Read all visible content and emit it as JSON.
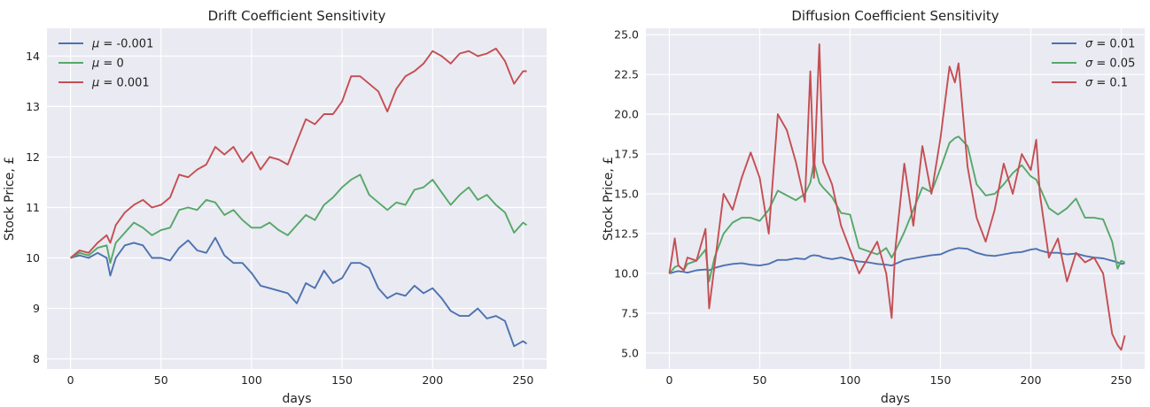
{
  "style": {
    "plot_bg": "#eaeaf2",
    "grid_color": "#ffffff",
    "series_colors": [
      "#4c72b0",
      "#55a868",
      "#c44e52"
    ]
  },
  "chart_data": [
    {
      "type": "line",
      "title": "Drift Coefficient Sensitivity",
      "xlabel": "days",
      "ylabel": "Stock Price, £",
      "xlim": [
        -13,
        263
      ],
      "ylim": [
        7.8,
        14.55
      ],
      "xticks": [
        0,
        50,
        100,
        150,
        200,
        250
      ],
      "xtick_labels": [
        "0",
        "50",
        "100",
        "150",
        "200",
        "250"
      ],
      "yticks": [
        8,
        9,
        10,
        11,
        12,
        13,
        14
      ],
      "ytick_labels": [
        "8",
        "9",
        "10",
        "11",
        "12",
        "13",
        "14"
      ],
      "grid": true,
      "legend_position": "upper left",
      "x": [
        0,
        5,
        10,
        15,
        20,
        22,
        25,
        30,
        35,
        40,
        45,
        50,
        55,
        60,
        65,
        70,
        75,
        80,
        85,
        90,
        95,
        100,
        105,
        110,
        115,
        120,
        125,
        130,
        135,
        140,
        145,
        150,
        155,
        160,
        165,
        170,
        175,
        180,
        185,
        190,
        195,
        200,
        205,
        210,
        215,
        220,
        225,
        230,
        235,
        240,
        245,
        250,
        252
      ],
      "series": [
        {
          "name": "μ = -0.001",
          "legend": {
            "symbol": "μ",
            "rest": " = -0.001"
          },
          "color": "#4c72b0",
          "values": [
            10.0,
            10.05,
            10.0,
            10.1,
            10.0,
            9.65,
            10.0,
            10.25,
            10.3,
            10.25,
            10.0,
            10.0,
            9.95,
            10.2,
            10.35,
            10.15,
            10.1,
            10.4,
            10.05,
            9.9,
            9.9,
            9.7,
            9.45,
            9.4,
            9.35,
            9.3,
            9.1,
            9.5,
            9.4,
            9.75,
            9.5,
            9.6,
            9.9,
            9.9,
            9.8,
            9.4,
            9.2,
            9.3,
            9.25,
            9.45,
            9.3,
            9.4,
            9.2,
            8.95,
            8.85,
            8.85,
            9.0,
            8.8,
            8.85,
            8.75,
            8.25,
            8.35,
            8.3
          ]
        },
        {
          "name": "μ = 0",
          "legend": {
            "symbol": "μ",
            "rest": " = 0"
          },
          "color": "#55a868",
          "values": [
            10.0,
            10.1,
            10.05,
            10.2,
            10.25,
            9.9,
            10.3,
            10.5,
            10.7,
            10.6,
            10.45,
            10.55,
            10.6,
            10.95,
            11.0,
            10.95,
            11.15,
            11.1,
            10.85,
            10.95,
            10.75,
            10.6,
            10.6,
            10.7,
            10.55,
            10.45,
            10.65,
            10.85,
            10.75,
            11.05,
            11.2,
            11.4,
            11.55,
            11.65,
            11.25,
            11.1,
            10.95,
            11.1,
            11.05,
            11.35,
            11.4,
            11.55,
            11.3,
            11.05,
            11.25,
            11.4,
            11.15,
            11.25,
            11.05,
            10.9,
            10.5,
            10.7,
            10.65
          ]
        },
        {
          "name": "μ = 0.001",
          "legend": {
            "symbol": "μ",
            "rest": " = 0.001"
          },
          "color": "#c44e52",
          "values": [
            10.0,
            10.15,
            10.1,
            10.3,
            10.45,
            10.3,
            10.65,
            10.9,
            11.05,
            11.15,
            11.0,
            11.05,
            11.2,
            11.65,
            11.6,
            11.75,
            11.85,
            12.2,
            12.05,
            12.2,
            11.9,
            12.1,
            11.75,
            12.0,
            11.95,
            11.85,
            12.3,
            12.75,
            12.65,
            12.85,
            12.85,
            13.1,
            13.6,
            13.6,
            13.45,
            13.3,
            12.9,
            13.35,
            13.6,
            13.7,
            13.85,
            14.1,
            14.0,
            13.85,
            14.05,
            14.1,
            14.0,
            14.05,
            14.15,
            13.9,
            13.45,
            13.7,
            13.7
          ]
        }
      ]
    },
    {
      "type": "line",
      "title": "Diffusion Coefficient Sensitivity",
      "xlabel": "days",
      "ylabel": "Stock Price, £",
      "xlim": [
        -13,
        263
      ],
      "ylim": [
        4.0,
        25.4
      ],
      "xticks": [
        0,
        50,
        100,
        150,
        200,
        250
      ],
      "xtick_labels": [
        "0",
        "50",
        "100",
        "150",
        "200",
        "250"
      ],
      "yticks": [
        5.0,
        7.5,
        10.0,
        12.5,
        15.0,
        17.5,
        20.0,
        22.5,
        25.0
      ],
      "ytick_labels": [
        "5.0",
        "7.5",
        "10.0",
        "12.5",
        "15.0",
        "17.5",
        "20.0",
        "22.5",
        "25.0"
      ],
      "grid": true,
      "legend_position": "upper right",
      "x": [
        0,
        3,
        5,
        8,
        10,
        15,
        20,
        22,
        25,
        30,
        35,
        40,
        45,
        50,
        55,
        60,
        65,
        70,
        75,
        78,
        80,
        83,
        85,
        90,
        95,
        100,
        105,
        110,
        115,
        120,
        123,
        125,
        130,
        135,
        140,
        145,
        150,
        155,
        158,
        160,
        165,
        170,
        175,
        180,
        185,
        190,
        195,
        200,
        203,
        205,
        210,
        215,
        220,
        225,
        230,
        235,
        240,
        245,
        248,
        250,
        252
      ],
      "series": [
        {
          "name": "σ = 0.01",
          "legend": {
            "symbol": "σ",
            "rest": " = 0.01"
          },
          "color": "#4c72b0",
          "values": [
            10.0,
            10.1,
            10.15,
            10.1,
            10.05,
            10.2,
            10.25,
            10.2,
            10.35,
            10.5,
            10.6,
            10.65,
            10.55,
            10.5,
            10.6,
            10.85,
            10.85,
            10.95,
            10.9,
            11.1,
            11.15,
            11.1,
            11.0,
            10.9,
            11.0,
            10.85,
            10.75,
            10.7,
            10.6,
            10.55,
            10.5,
            10.6,
            10.85,
            10.95,
            11.05,
            11.15,
            11.2,
            11.45,
            11.55,
            11.6,
            11.55,
            11.3,
            11.15,
            11.1,
            11.2,
            11.3,
            11.35,
            11.5,
            11.55,
            11.45,
            11.3,
            11.3,
            11.2,
            11.25,
            11.1,
            11.0,
            10.95,
            10.8,
            10.7,
            10.6,
            10.65
          ]
        },
        {
          "name": "σ = 0.05",
          "legend": {
            "symbol": "σ",
            "rest": " = 0.05"
          },
          "color": "#55a868",
          "values": [
            10.0,
            10.4,
            10.5,
            10.2,
            10.6,
            10.8,
            11.5,
            9.5,
            11.0,
            12.5,
            13.2,
            13.5,
            13.5,
            13.3,
            14.0,
            15.2,
            14.9,
            14.6,
            15.0,
            15.7,
            17.0,
            15.7,
            15.4,
            14.8,
            13.8,
            13.7,
            11.6,
            11.4,
            11.2,
            11.6,
            11.0,
            11.4,
            12.6,
            14.0,
            15.4,
            15.1,
            16.6,
            18.2,
            18.5,
            18.6,
            18.0,
            15.6,
            14.9,
            15.0,
            15.6,
            16.3,
            16.8,
            16.1,
            15.9,
            15.4,
            14.1,
            13.7,
            14.1,
            14.7,
            13.5,
            13.5,
            13.4,
            12.0,
            10.3,
            10.8,
            10.7
          ]
        },
        {
          "name": "σ = 0.1",
          "legend": {
            "symbol": "σ",
            "rest": " = 0.1"
          },
          "color": "#c44e52",
          "values": [
            10.0,
            12.2,
            10.5,
            10.2,
            11.0,
            10.8,
            12.8,
            7.8,
            10.5,
            15.0,
            14.0,
            16.0,
            17.6,
            16.0,
            12.5,
            20.0,
            19.0,
            17.0,
            14.5,
            22.7,
            16.0,
            24.4,
            17.0,
            15.6,
            13.0,
            11.5,
            10.0,
            11.0,
            12.0,
            10.0,
            7.2,
            11.5,
            16.9,
            13.0,
            18.0,
            15.0,
            18.5,
            23.0,
            22.0,
            23.2,
            16.7,
            13.5,
            12.0,
            14.0,
            16.9,
            15.0,
            17.5,
            16.5,
            18.4,
            15.0,
            11.0,
            12.2,
            9.5,
            11.3,
            10.7,
            11.0,
            10.0,
            6.2,
            5.5,
            5.2,
            6.1
          ]
        }
      ]
    }
  ]
}
